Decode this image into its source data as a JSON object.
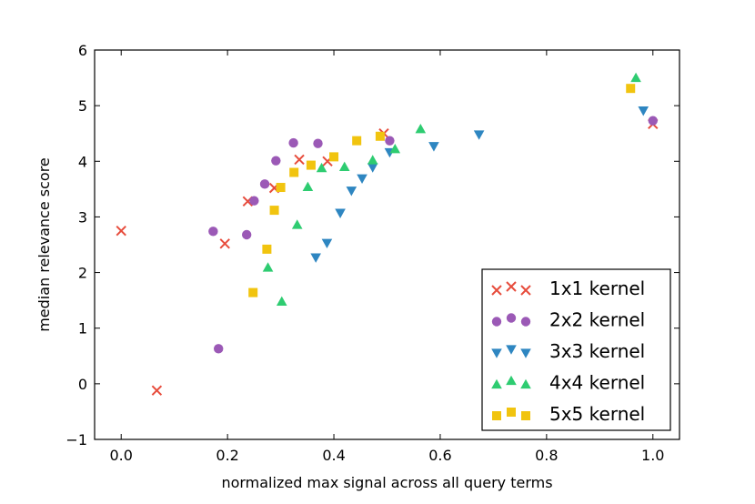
{
  "chart_data": {
    "type": "scatter",
    "xlabel": "normalized max signal across all query terms",
    "ylabel": "median relevance score",
    "xlim": [
      -0.05,
      1.05
    ],
    "ylim": [
      -1,
      6
    ],
    "xticks": [
      "0.0",
      "0.2",
      "0.4",
      "0.6",
      "0.8",
      "1.0"
    ],
    "yticks": [
      "−1",
      "0",
      "1",
      "2",
      "3",
      "4",
      "5",
      "6"
    ],
    "grid": false,
    "legend_position": "bottom-right",
    "series": [
      {
        "name": "1x1 kernel",
        "marker": "x",
        "color": "#e74c3c",
        "points": [
          [
            0.0,
            2.75
          ],
          [
            0.067,
            -0.12
          ],
          [
            0.195,
            2.52
          ],
          [
            0.238,
            3.28
          ],
          [
            0.288,
            3.52
          ],
          [
            0.335,
            4.03
          ],
          [
            0.388,
            4.0
          ],
          [
            0.494,
            4.5
          ],
          [
            1.0,
            4.67
          ]
        ]
      },
      {
        "name": "2x2 kernel",
        "marker": "circle",
        "color": "#9b59b6",
        "points": [
          [
            0.173,
            2.74
          ],
          [
            0.183,
            0.63
          ],
          [
            0.236,
            2.68
          ],
          [
            0.25,
            3.29
          ],
          [
            0.27,
            3.59
          ],
          [
            0.291,
            4.01
          ],
          [
            0.324,
            4.33
          ],
          [
            0.37,
            4.32
          ],
          [
            0.505,
            4.37
          ],
          [
            1.0,
            4.73
          ]
        ]
      },
      {
        "name": "3x3 kernel",
        "marker": "triangle-down",
        "color": "#2e86c1",
        "points": [
          [
            0.366,
            2.27
          ],
          [
            0.387,
            2.53
          ],
          [
            0.412,
            3.07
          ],
          [
            0.433,
            3.47
          ],
          [
            0.453,
            3.69
          ],
          [
            0.473,
            3.89
          ],
          [
            0.505,
            4.16
          ],
          [
            0.588,
            4.27
          ],
          [
            0.673,
            4.48
          ],
          [
            0.982,
            4.91
          ]
        ]
      },
      {
        "name": "4x4 kernel",
        "marker": "triangle-up",
        "color": "#2ecc71",
        "points": [
          [
            0.276,
            2.09
          ],
          [
            0.302,
            1.48
          ],
          [
            0.331,
            2.86
          ],
          [
            0.351,
            3.54
          ],
          [
            0.377,
            3.88
          ],
          [
            0.42,
            3.9
          ],
          [
            0.473,
            4.02
          ],
          [
            0.515,
            4.22
          ],
          [
            0.563,
            4.58
          ],
          [
            0.968,
            5.5
          ]
        ]
      },
      {
        "name": "5x5 kernel",
        "marker": "square",
        "color": "#f1c40f",
        "points": [
          [
            0.248,
            1.64
          ],
          [
            0.274,
            2.42
          ],
          [
            0.288,
            3.12
          ],
          [
            0.3,
            3.53
          ],
          [
            0.325,
            3.8
          ],
          [
            0.357,
            3.93
          ],
          [
            0.4,
            4.08
          ],
          [
            0.443,
            4.37
          ],
          [
            0.487,
            4.45
          ],
          [
            0.958,
            5.31
          ]
        ]
      }
    ]
  }
}
